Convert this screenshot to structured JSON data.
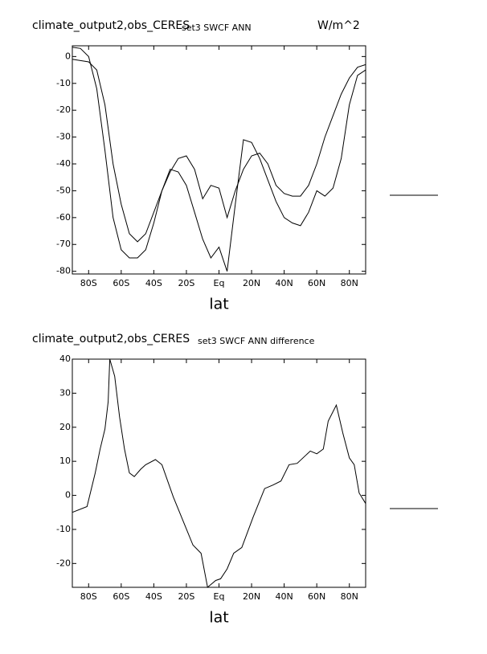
{
  "chart_data": [
    {
      "type": "line",
      "title": "climate_output2,obs_CERES",
      "subtitle": "set3 SWCF ANN",
      "units": "W/m^2",
      "xlabel": "lat",
      "x": [
        -90,
        -85,
        -80,
        -75,
        -70,
        -65,
        -60,
        -55,
        -50,
        -45,
        -40,
        -35,
        -30,
        -25,
        -20,
        -15,
        -10,
        -5,
        0,
        5,
        10,
        15,
        20,
        25,
        30,
        35,
        40,
        45,
        50,
        55,
        60,
        65,
        70,
        75,
        80,
        85,
        90
      ],
      "series": [
        {
          "color": "#000000",
          "values": [
            3.5,
            3,
            0,
            -12,
            -35,
            -60,
            -72,
            -75,
            -75,
            -72,
            -62,
            -50,
            -42,
            -43,
            -48,
            -58,
            -68,
            -75,
            -71,
            -80,
            -55,
            -31,
            -32,
            -38,
            -46,
            -54,
            -60,
            -62,
            -63,
            -58,
            -50,
            -52,
            -49,
            -38,
            -18,
            -7,
            -5
          ]
        },
        {
          "color": "#000000",
          "values": [
            -1,
            -1.5,
            -2,
            -5,
            -18,
            -40,
            -55,
            -66,
            -69,
            -66,
            -58,
            -50,
            -43,
            -38,
            -37,
            -42,
            -53,
            -48,
            -49,
            -60,
            -50,
            -42,
            -37,
            -36,
            -40,
            -48,
            -51,
            -52,
            -52,
            -48,
            -40,
            -30,
            -22,
            -14,
            -8,
            -4,
            -3
          ]
        }
      ],
      "xlim": [
        -90,
        90
      ],
      "ylim": [
        -81,
        4
      ],
      "xticks": [
        {
          "value": -80,
          "label": "80S"
        },
        {
          "value": -60,
          "label": "60S"
        },
        {
          "value": -40,
          "label": "40S"
        },
        {
          "value": -20,
          "label": "20S"
        },
        {
          "value": 0,
          "label": "Eq"
        },
        {
          "value": 20,
          "label": "20N"
        },
        {
          "value": 40,
          "label": "40N"
        },
        {
          "value": 60,
          "label": "60N"
        },
        {
          "value": 80,
          "label": "80N"
        }
      ],
      "yticks": [
        0,
        -10,
        -20,
        -30,
        -40,
        -50,
        -60,
        -70,
        -80
      ]
    },
    {
      "type": "line",
      "title": "climate_output2,obs_CERES",
      "subtitle": "set3 SWCF ANN difference",
      "xlabel": "lat",
      "x": [
        -90,
        -81,
        -76,
        -73,
        -70,
        -68,
        -67,
        -64,
        -61,
        -58,
        -55,
        -52,
        -48,
        -45,
        -39,
        -35,
        -28,
        -21,
        -16,
        -11,
        -7,
        -2,
        1,
        5,
        9,
        14,
        21,
        28,
        33,
        38,
        43,
        48,
        56,
        60,
        64,
        67,
        72,
        76,
        80,
        83,
        86,
        90
      ],
      "series": [
        {
          "color": "#000000",
          "values": [
            -5,
            -3.3,
            6.5,
            13.5,
            19.5,
            27.5,
            40,
            35,
            23,
            13.6,
            6.6,
            5.5,
            7.7,
            9,
            10.5,
            9,
            -0.5,
            -8.7,
            -14.6,
            -17,
            -27,
            -25,
            -24.5,
            -21.6,
            -17,
            -15.3,
            -6.3,
            2,
            3,
            4.2,
            9,
            9.4,
            13,
            12.2,
            13.6,
            21.8,
            26.5,
            18.3,
            11,
            9,
            0.7,
            -2.4
          ]
        }
      ],
      "xlim": [
        -90,
        90
      ],
      "ylim": [
        -27,
        40
      ],
      "xticks": [
        {
          "value": -80,
          "label": "80S"
        },
        {
          "value": -60,
          "label": "60S"
        },
        {
          "value": -40,
          "label": "40S"
        },
        {
          "value": -20,
          "label": "20S"
        },
        {
          "value": 0,
          "label": "Eq"
        },
        {
          "value": 20,
          "label": "20N"
        },
        {
          "value": 40,
          "label": "40N"
        },
        {
          "value": 60,
          "label": "60N"
        },
        {
          "value": 80,
          "label": "80N"
        }
      ],
      "yticks": [
        40,
        30,
        20,
        10,
        0,
        -10,
        -20
      ]
    }
  ]
}
